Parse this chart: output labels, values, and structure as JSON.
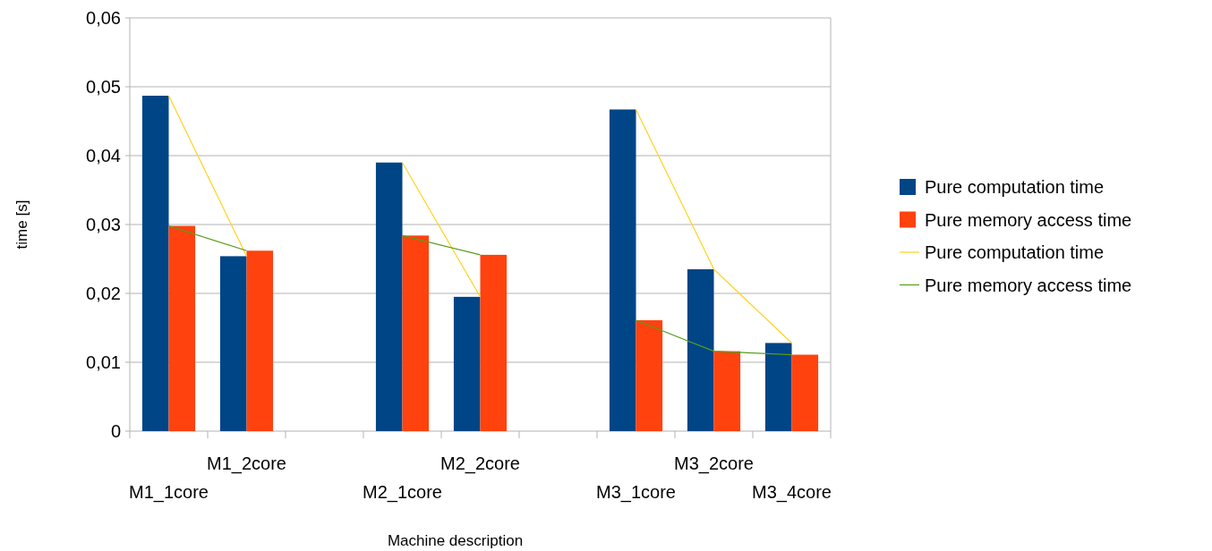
{
  "chart_data": {
    "type": "bar",
    "xlabel": "Machine description",
    "ylabel": "time [s]",
    "categories": [
      "M1_1core",
      "M1_2core",
      null,
      "M2_1core",
      "M2_2core",
      null,
      "M3_1core",
      "M3_2core",
      "M3_4core"
    ],
    "series": [
      {
        "name": "Pure computation time",
        "color": "#004586",
        "values": [
          0.0487,
          0.0254,
          null,
          0.039,
          0.0195,
          null,
          0.0467,
          0.0235,
          0.0128
        ]
      },
      {
        "name": "Pure memory access time",
        "color": "#ff420e",
        "values": [
          0.0298,
          0.0262,
          null,
          0.0284,
          0.0256,
          null,
          0.0161,
          0.0116,
          0.0111
        ]
      },
      {
        "name": "Pure computation time",
        "type": "line",
        "color": "#ffd320",
        "values": [
          0.0487,
          0.0254,
          null,
          0.039,
          0.0195,
          null,
          0.0467,
          0.0235,
          0.0128
        ]
      },
      {
        "name": "Pure memory access time",
        "type": "line",
        "color": "#579d1c",
        "values": [
          0.0298,
          0.0262,
          null,
          0.0284,
          0.0256,
          null,
          0.0161,
          0.0116,
          0.0111
        ]
      }
    ],
    "ylim": [
      0,
      0.06
    ],
    "yticks": [
      {
        "value": 0,
        "label": "0"
      },
      {
        "value": 0.01,
        "label": "0,01"
      },
      {
        "value": 0.02,
        "label": "0,02"
      },
      {
        "value": 0.03,
        "label": "0,03"
      },
      {
        "value": 0.04,
        "label": "0,04"
      },
      {
        "value": 0.05,
        "label": "0,05"
      },
      {
        "value": 0.06,
        "label": "0,06"
      }
    ],
    "grid": "y",
    "legend": "right",
    "marker": "none",
    "line_style": "solid"
  }
}
